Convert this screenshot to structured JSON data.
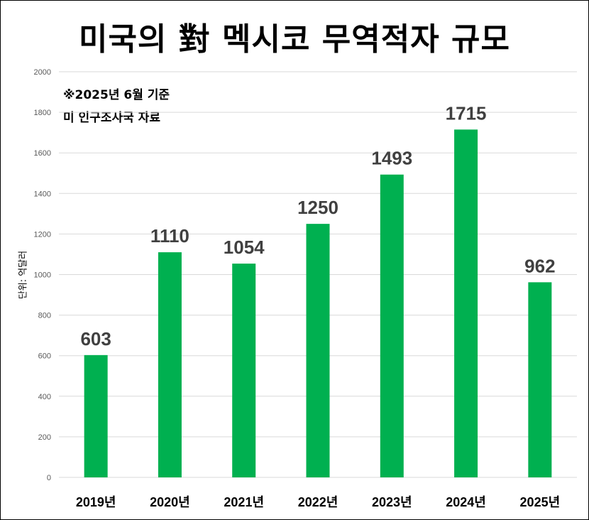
{
  "chart_data": {
    "type": "bar",
    "title": "미국의 對 멕시코 무역적자 규모",
    "notes": [
      "※2025년 6월 기준",
      "미 인구조사국 자료"
    ],
    "ylabel": "단위: 억달러",
    "categories": [
      "2019년",
      "2020년",
      "2021년",
      "2022년",
      "2023년",
      "2024년",
      "2025년"
    ],
    "values": [
      603,
      1110,
      1054,
      1250,
      1493,
      1715,
      962
    ],
    "ylim": [
      0,
      2000
    ],
    "yticks": [
      0,
      200,
      400,
      600,
      800,
      1000,
      1200,
      1400,
      1600,
      1800,
      2000
    ],
    "grid": true,
    "colors": {
      "bar": "#00b050",
      "grid": "#d9d9d9",
      "value_label": "#404040"
    }
  }
}
